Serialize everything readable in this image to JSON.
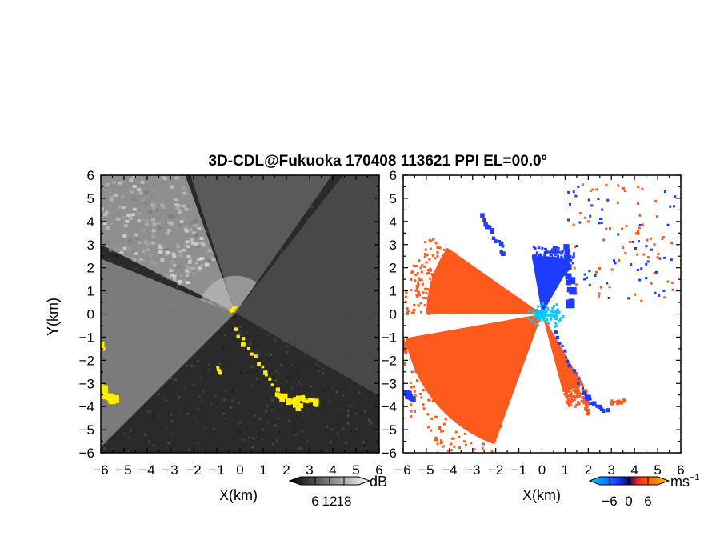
{
  "chart_data": [
    {
      "type": "heatmap",
      "title": "3D-CDL@Fukuoka 170408 113621 PPI EL=00.0º",
      "panel": "reflectivity",
      "xlabel": "X(km)",
      "ylabel": "Y(km)",
      "xlim": [
        -6,
        6
      ],
      "ylim": [
        -6,
        6
      ],
      "x_ticks": [
        "-6",
        "-5",
        "-4",
        "-3",
        "-2",
        "-1",
        "0",
        "1",
        "2",
        "3",
        "4",
        "5",
        "6"
      ],
      "y_ticks": [
        "-6",
        "-5",
        "-4",
        "-3",
        "-2",
        "-1",
        "0",
        "1",
        "2",
        "3",
        "4",
        "5",
        "6"
      ],
      "colorbar": {
        "unit": "dB",
        "ticks": [
          "6",
          "12",
          "18"
        ],
        "range": [
          0,
          24
        ]
      },
      "colors": {
        "background": "#2a2a2a",
        "sector": "#a2a2a2",
        "overlay": "#ffee00"
      },
      "radar_origin": [
        -0.2,
        0.05
      ],
      "sectors": [
        {
          "az_from": -135,
          "az_to": -68,
          "level": 0.55
        },
        {
          "az_from": -63,
          "az_to": -20,
          "level": 0.72
        },
        {
          "az_from": -18,
          "az_to": 35,
          "level": 0.28
        },
        {
          "az_from": 38,
          "az_to": 120,
          "level": 0.12
        }
      ],
      "yellow_features": [
        {
          "from": [
            -0.2,
            -0.7
          ],
          "to": [
            1.6,
            -3.3
          ],
          "width": 0.18
        },
        {
          "from": [
            1.6,
            -3.4
          ],
          "to": [
            2.6,
            -4.0
          ],
          "width": 0.22
        },
        {
          "from": [
            2.3,
            -3.6
          ],
          "to": [
            3.4,
            -3.9
          ],
          "width": 0.22
        },
        {
          "from": [
            -6.0,
            -3.2
          ],
          "to": [
            -5.5,
            -3.8
          ],
          "width": 0.3
        },
        {
          "from": [
            -6.0,
            -1.2
          ],
          "to": [
            -5.9,
            -1.5
          ],
          "width": 0.15
        },
        {
          "from": [
            -1.0,
            -2.3
          ],
          "to": [
            -0.8,
            -2.6
          ],
          "width": 0.12
        },
        {
          "from": [
            -0.4,
            0.1
          ],
          "to": [
            -0.2,
            0.3
          ],
          "width": 0.1
        }
      ]
    },
    {
      "type": "heatmap",
      "panel": "doppler-velocity",
      "xlabel": "X(km)",
      "xlim": [
        -6,
        6
      ],
      "ylim": [
        -6,
        6
      ],
      "x_ticks": [
        "-6",
        "-5",
        "-4",
        "-3",
        "-2",
        "-1",
        "0",
        "1",
        "2",
        "3",
        "4",
        "5",
        "6"
      ],
      "y_ticks": [
        "-6",
        "-5",
        "-4",
        "-3",
        "-2",
        "-1",
        "0",
        "1",
        "2",
        "3",
        "4",
        "5",
        "6"
      ],
      "colorbar": {
        "unit": "ms",
        "unit_exponent": "−1",
        "ticks": [
          "−6",
          "0",
          "6"
        ],
        "range": [
          -9,
          9
        ]
      },
      "colors": {
        "background": "#ffffff",
        "positive": "#ff5a1e",
        "negative": "#1e3cff",
        "near_zero": "#00ccff"
      },
      "radar_origin": [
        0.0,
        0.0
      ],
      "sectors": [
        {
          "az_from": -160,
          "az_to": -100,
          "velocity": 5.0,
          "radius": 6.0
        },
        {
          "az_from": -118,
          "az_to": -107,
          "velocity": 5.5,
          "radius": 4.5
        },
        {
          "az_from": -90,
          "az_to": -55,
          "velocity": 4.5,
          "radius": 5.0
        },
        {
          "az_from": -10,
          "az_to": 30,
          "velocity": -4.5,
          "radius": 2.5
        },
        {
          "az_from": 150,
          "az_to": 165,
          "velocity": 4.5,
          "radius": 3.5
        }
      ],
      "blue_features": [
        {
          "from": [
            0.6,
            -0.8
          ],
          "to": [
            1.8,
            -3.4
          ],
          "width": 0.15
        },
        {
          "from": [
            1.8,
            -3.5
          ],
          "to": [
            2.8,
            -4.2
          ],
          "width": 0.18
        },
        {
          "from": [
            0.9,
            2.8
          ],
          "to": [
            1.3,
            0.5
          ],
          "width": 0.35
        },
        {
          "from": [
            -2.5,
            4.2
          ],
          "to": [
            -1.6,
            2.6
          ],
          "width": 0.2
        },
        {
          "from": [
            -6.0,
            -3.3
          ],
          "to": [
            -5.6,
            -3.7
          ],
          "width": 0.2
        }
      ],
      "red_features": [
        {
          "from": [
            3.0,
            -3.8
          ],
          "to": [
            3.6,
            -3.8
          ],
          "width": 0.15
        },
        {
          "from": [
            1.9,
            -3.8
          ],
          "to": [
            2.0,
            -4.3
          ],
          "width": 0.15
        },
        {
          "from": [
            -6.0,
            -1.2
          ],
          "to": [
            -5.9,
            -1.6
          ],
          "width": 0.15
        },
        {
          "from": [
            -1.8,
            -2.1
          ],
          "to": [
            -1.6,
            -2.7
          ],
          "width": 0.15
        }
      ]
    }
  ]
}
